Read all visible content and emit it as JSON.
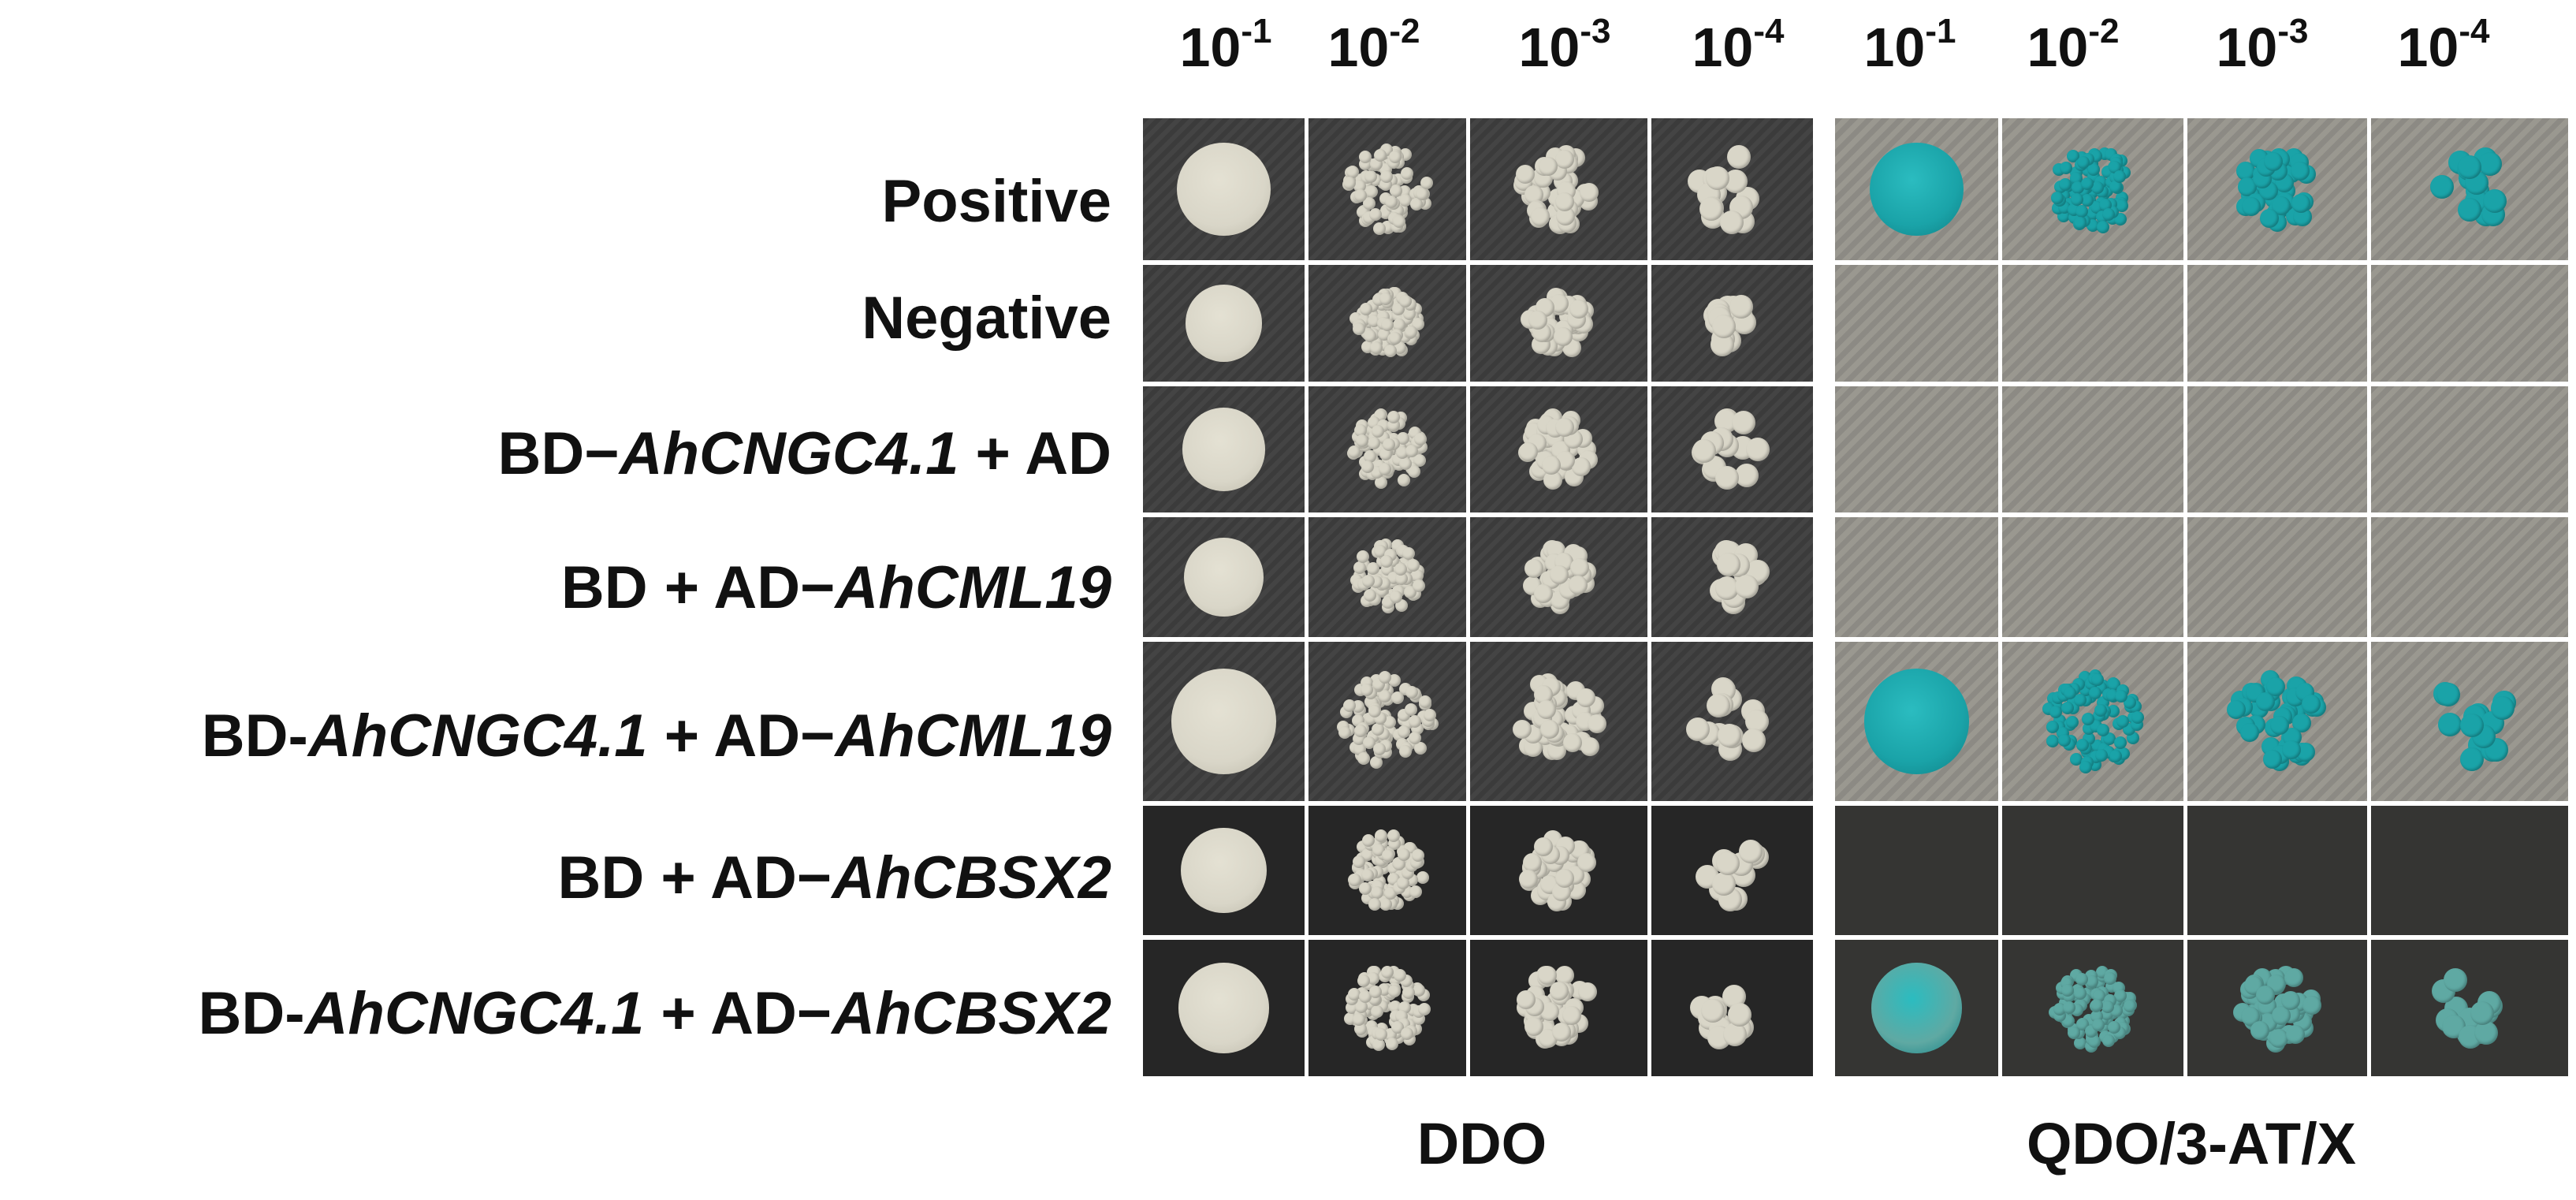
{
  "dilutions": [
    "10",
    "10",
    "10",
    "10",
    "10",
    "10",
    "10",
    "10"
  ],
  "dilution_exponents": [
    "-1",
    "-2",
    "-3",
    "-4",
    "-1",
    "-2",
    "-3",
    "-4"
  ],
  "rows": [
    {
      "parts": [
        {
          "t": "Positive",
          "i": false
        }
      ]
    },
    {
      "parts": [
        {
          "t": "Negative",
          "i": false
        }
      ]
    },
    {
      "parts": [
        {
          "t": "BD−",
          "i": false
        },
        {
          "t": "AhCNGC4.1",
          "i": true
        },
        {
          "t": " +  AD",
          "i": false
        }
      ]
    },
    {
      "parts": [
        {
          "t": "BD +  AD−",
          "i": false
        },
        {
          "t": "AhCML19",
          "i": true
        }
      ]
    },
    {
      "parts": [
        {
          "t": "BD-",
          "i": false
        },
        {
          "t": "AhCNGC4.1",
          "i": true
        },
        {
          "t": " +  AD−",
          "i": false
        },
        {
          "t": "AhCML19",
          "i": true
        }
      ]
    },
    {
      "parts": [
        {
          "t": "BD +  AD−",
          "i": false
        },
        {
          "t": "AhCBSX2",
          "i": true
        }
      ]
    },
    {
      "parts": [
        {
          "t": "BD-",
          "i": false
        },
        {
          "t": "AhCNGC4.1",
          "i": true
        },
        {
          "t": " +  AD−",
          "i": false
        },
        {
          "t": "AhCBSX2",
          "i": true
        }
      ]
    }
  ],
  "block_labels": {
    "left": "DDO",
    "right": "QDO/3-AT/X"
  },
  "growth": {
    "ddo": [
      [
        1,
        1,
        1,
        1
      ],
      [
        1,
        1,
        1,
        1
      ],
      [
        1,
        1,
        1,
        1
      ],
      [
        1,
        1,
        1,
        1
      ],
      [
        1,
        1,
        1,
        1
      ],
      [
        1,
        1,
        1,
        1
      ],
      [
        1,
        1,
        1,
        1
      ]
    ],
    "qdo": [
      [
        1,
        1,
        1,
        1
      ],
      [
        0,
        0,
        0,
        0
      ],
      [
        0,
        0,
        0,
        0
      ],
      [
        0,
        0,
        0,
        0
      ],
      [
        1,
        1,
        1,
        1
      ],
      [
        0,
        0,
        0,
        0
      ],
      [
        1,
        1,
        1,
        1
      ]
    ]
  },
  "colors": {
    "colony_white": "#d9d6c8",
    "colony_blue": "#1aa3a8",
    "colony_pale_blue": "#5fa9a3"
  }
}
